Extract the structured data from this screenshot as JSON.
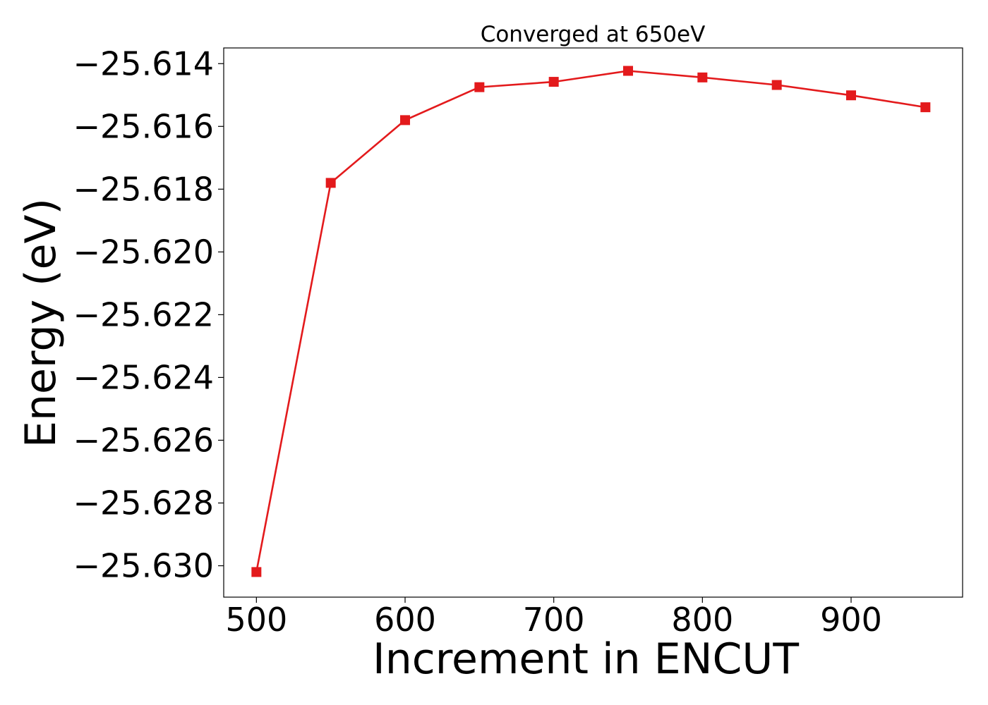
{
  "chart_data": {
    "type": "line",
    "title": "Converged at 650eV",
    "xlabel": "Increment in ENCUT",
    "ylabel": "Energy (eV)",
    "x": [
      500,
      550,
      600,
      650,
      700,
      750,
      800,
      850,
      900,
      950
    ],
    "series": [
      {
        "values": [
          -25.6302,
          -25.6178,
          -25.6158,
          -25.61475,
          -25.61458,
          -25.61423,
          -25.61444,
          -25.61468,
          -25.61501,
          -25.61539
        ],
        "color": "#e31a1c",
        "marker": "square"
      }
    ],
    "xlim": [
      478,
      975
    ],
    "ylim": [
      -25.631,
      -25.6135
    ],
    "xticks": [
      500,
      600,
      700,
      800,
      900
    ],
    "xtick_labels": [
      "500",
      "600",
      "700",
      "800",
      "900"
    ],
    "yticks": [
      -25.614,
      -25.616,
      -25.618,
      -25.62,
      -25.622,
      -25.624,
      -25.626,
      -25.628,
      -25.63
    ],
    "ytick_labels": [
      "−25.614",
      "−25.616",
      "−25.618",
      "−25.620",
      "−25.622",
      "−25.624",
      "−25.626",
      "−25.628",
      "−25.630"
    ],
    "grid": false,
    "legend": "none"
  }
}
